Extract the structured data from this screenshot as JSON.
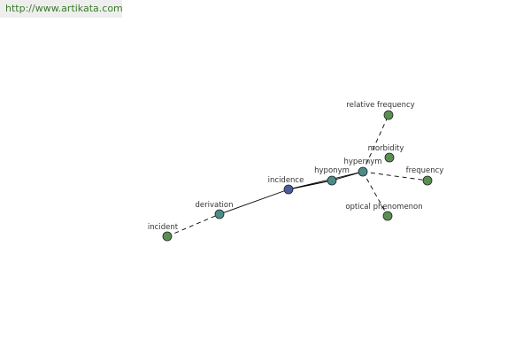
{
  "header": {
    "url": "http://www.artikata.com"
  },
  "nodes": [
    {
      "label": "incident"
    },
    {
      "label": "derivation"
    },
    {
      "label": "incidence"
    },
    {
      "label": "hyponym"
    },
    {
      "label": "hypernym"
    },
    {
      "label": "relative frequency"
    },
    {
      "label": "morbidity"
    },
    {
      "label": "frequency"
    },
    {
      "label": "optical phenomenon"
    }
  ]
}
